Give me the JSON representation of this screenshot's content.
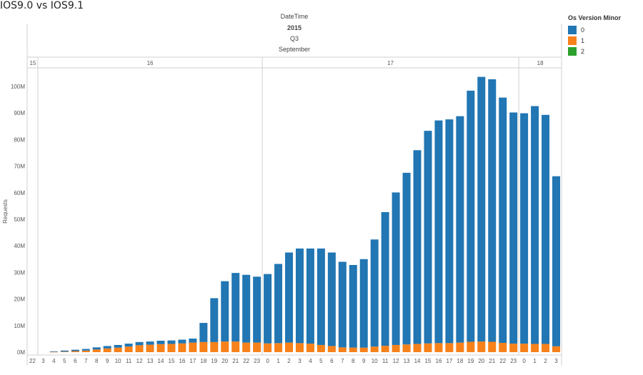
{
  "title": "IOS9.0 vs IOS9.1",
  "colors": {
    "ver0": "#2176b3",
    "ver1": "#f7811a",
    "ver2": "#2ca02c"
  },
  "legend": {
    "title": "Os Version Minor",
    "items": [
      {
        "label": "0",
        "color": "#2176b3"
      },
      {
        "label": "1",
        "color": "#f7811a"
      },
      {
        "label": "2",
        "color": "#2ca02c"
      }
    ]
  },
  "chart_data": {
    "type": "bar",
    "stacked": true,
    "header": {
      "title": "DateTime",
      "year": "2015",
      "quarter": "Q3",
      "month": "September"
    },
    "day_groups": [
      {
        "label": "15",
        "count": 1
      },
      {
        "label": "16",
        "count": 21
      },
      {
        "label": "17",
        "count": 24
      },
      {
        "label": "18",
        "count": 4
      }
    ],
    "categories": [
      "22",
      "3",
      "4",
      "5",
      "6",
      "7",
      "8",
      "9",
      "10",
      "11",
      "12",
      "13",
      "14",
      "15",
      "16",
      "17",
      "18",
      "19",
      "20",
      "21",
      "22",
      "23",
      "0",
      "1",
      "2",
      "3",
      "4",
      "5",
      "6",
      "7",
      "8",
      "9",
      "10",
      "11",
      "12",
      "13",
      "14",
      "15",
      "16",
      "17",
      "18",
      "19",
      "20",
      "21",
      "22",
      "23",
      "0",
      "1",
      "2",
      "3"
    ],
    "series": [
      {
        "name": "0",
        "values": [
          0,
          0,
          0.2,
          0.4,
          0.5,
          0.6,
          0.8,
          0.9,
          1.0,
          1.1,
          1.2,
          1.2,
          1.3,
          1.3,
          1.4,
          1.5,
          7.2,
          16.5,
          22.7,
          25.8,
          25.5,
          24.8,
          26.1,
          29.8,
          33.9,
          35.6,
          35.8,
          36.3,
          35.2,
          32.2,
          31.1,
          33.3,
          40.3,
          50.3,
          57.4,
          64.6,
          72.9,
          80.0,
          83.8,
          84.2,
          85.2,
          94.5,
          99.6,
          98.8,
          92.3,
          87.0,
          86.7,
          89.5,
          86.2,
          64.0
        ]
      },
      {
        "name": "1",
        "values": [
          0,
          0,
          0.1,
          0.2,
          0.4,
          0.6,
          1.0,
          1.4,
          1.7,
          2.1,
          2.6,
          2.8,
          3.0,
          3.1,
          3.3,
          3.6,
          3.8,
          3.8,
          4.0,
          4.0,
          3.6,
          3.6,
          3.3,
          3.4,
          3.6,
          3.4,
          3.2,
          2.7,
          2.3,
          1.8,
          1.7,
          1.7,
          2.1,
          2.4,
          2.7,
          2.9,
          3.1,
          3.3,
          3.4,
          3.4,
          3.6,
          3.9,
          4.0,
          3.9,
          3.5,
          3.2,
          3.2,
          3.1,
          3.1,
          2.2
        ]
      },
      {
        "name": "2",
        "values": [
          0,
          0,
          0,
          0,
          0,
          0,
          0,
          0,
          0,
          0,
          0,
          0,
          0,
          0,
          0,
          0,
          0,
          0,
          0,
          0,
          0,
          0,
          0,
          0,
          0,
          0,
          0,
          0,
          0,
          0,
          0,
          0,
          0,
          0,
          0,
          0,
          0,
          0,
          0,
          0,
          0,
          0,
          0,
          0,
          0,
          0,
          0,
          0,
          0,
          0
        ]
      }
    ],
    "ylabel": "Requests",
    "ylim": [
      0,
      110
    ],
    "yticks": [
      0,
      10,
      20,
      30,
      40,
      50,
      60,
      70,
      80,
      90,
      100
    ],
    "ytick_labels": [
      "0M",
      "10M",
      "20M",
      "30M",
      "40M",
      "50M",
      "60M",
      "70M",
      "80M",
      "90M",
      "100M"
    ],
    "grid": false
  }
}
